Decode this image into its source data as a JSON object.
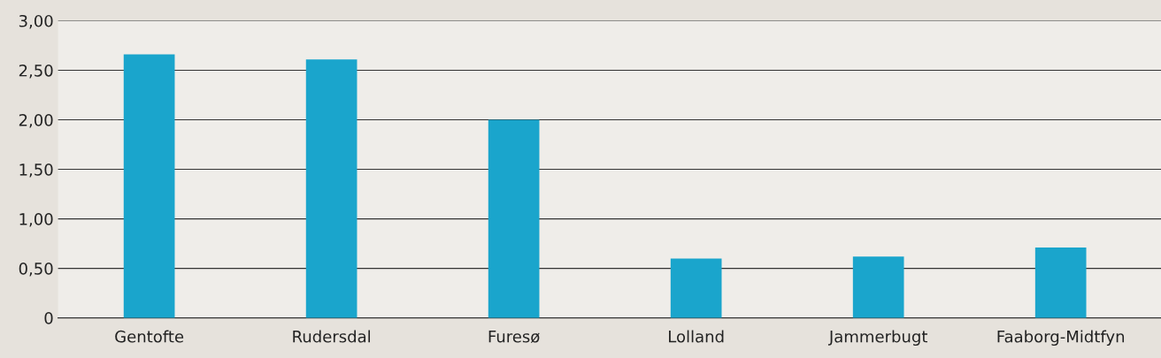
{
  "chart_data": {
    "type": "bar",
    "categories": [
      "Gentofte",
      "Rudersdal",
      "Furesø",
      "Lolland",
      "Jammerbugt",
      "Faaborg-Midtfyn"
    ],
    "values": [
      2.66,
      2.61,
      2.0,
      0.6,
      0.62,
      0.71
    ],
    "color": "#1aa5cc",
    "ylim": [
      0,
      3
    ],
    "yticks": [
      {
        "value": 0,
        "label": "0"
      },
      {
        "value": 0.5,
        "label": "0,50"
      },
      {
        "value": 1,
        "label": "1,00"
      },
      {
        "value": 1.5,
        "label": "1,50"
      },
      {
        "value": 2,
        "label": "2,00"
      },
      {
        "value": 2.5,
        "label": "2,50"
      },
      {
        "value": 3,
        "label": "3,00"
      }
    ],
    "grid": "y"
  }
}
